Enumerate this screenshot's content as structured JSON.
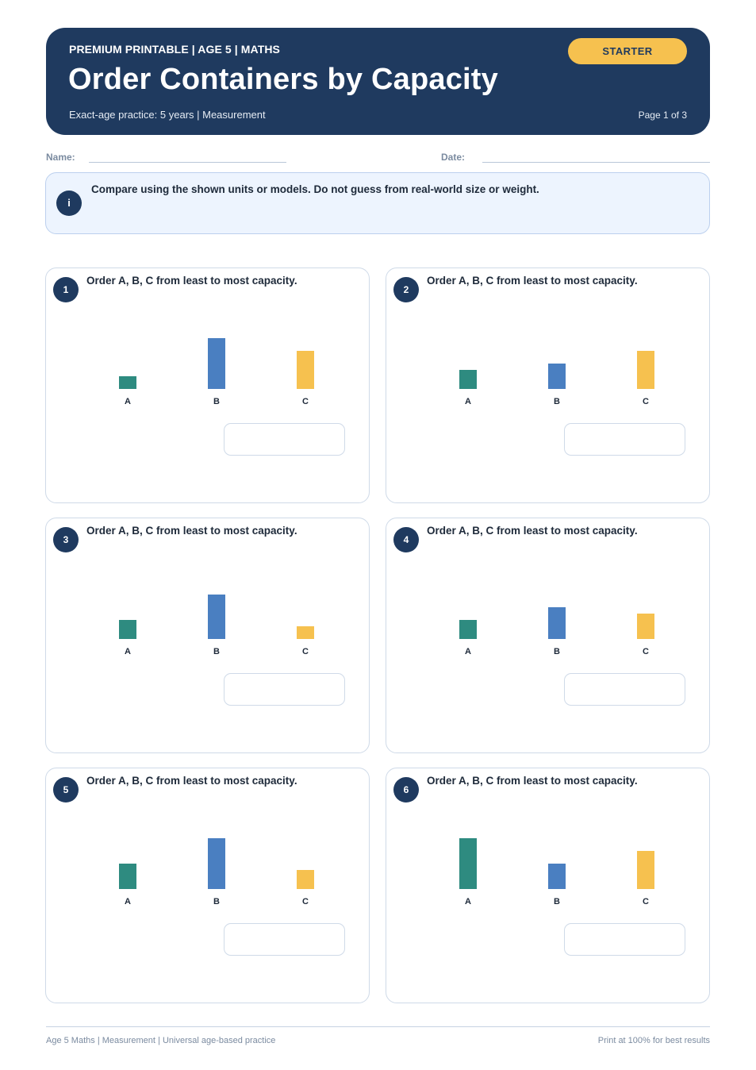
{
  "header": {
    "kicker": "PREMIUM PRINTABLE | AGE 5 | MATHS",
    "title": "Order Containers by Capacity",
    "subtitle": "Exact-age practice: 5 years | Measurement",
    "page": "Page 1 of 3",
    "badge": "STARTER"
  },
  "fields": {
    "name_label": "Name:",
    "date_label": "Date:"
  },
  "info": {
    "icon": "i",
    "text": "Compare using the shown units or models. Do not guess from real-world size or weight."
  },
  "colors": {
    "A": "#2e8b80",
    "B": "#4a7fc1",
    "C": "#f6c14f",
    "navy": "#1f3a5f"
  },
  "questions": [
    {
      "number": "1",
      "prompt": "Order A, B, C from least to most capacity.",
      "labels": [
        "A",
        "B",
        "C"
      ],
      "capacities": [
        1,
        4,
        3
      ]
    },
    {
      "number": "2",
      "prompt": "Order A, B, C from least to most capacity.",
      "labels": [
        "A",
        "B",
        "C"
      ],
      "capacities": [
        1.5,
        2,
        3
      ]
    },
    {
      "number": "3",
      "prompt": "Order A, B, C from least to most capacity.",
      "labels": [
        "A",
        "B",
        "C"
      ],
      "capacities": [
        1.5,
        3.5,
        1
      ]
    },
    {
      "number": "4",
      "prompt": "Order A, B, C from least to most capacity.",
      "labels": [
        "A",
        "B",
        "C"
      ],
      "capacities": [
        1.5,
        2.5,
        2
      ]
    },
    {
      "number": "5",
      "prompt": "Order A, B, C from least to most capacity.",
      "labels": [
        "A",
        "B",
        "C"
      ],
      "capacities": [
        2,
        4,
        1.5
      ]
    },
    {
      "number": "6",
      "prompt": "Order A, B, C from least to most capacity.",
      "labels": [
        "A",
        "B",
        "C"
      ],
      "capacities": [
        4,
        2,
        3
      ]
    }
  ],
  "footer": {
    "left": "Age 5 Maths | Measurement | Universal age-based practice",
    "right": "Print at 100% for best results"
  }
}
